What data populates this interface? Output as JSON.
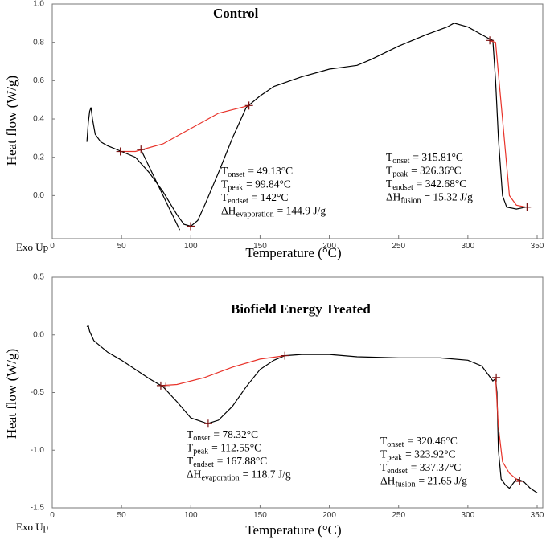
{
  "chart_data": [
    {
      "type": "line",
      "title": "Control",
      "x_label": "Temperature (°C)",
      "y_label": "Heat flow (W/g)",
      "corner_label": "Exo Up",
      "xlim": [
        0,
        350
      ],
      "xticks": [
        0,
        50,
        100,
        150,
        200,
        250,
        300,
        350
      ],
      "ylim": [
        -0.225,
        1.0
      ],
      "yticks": [
        {
          "value": 0,
          "label": "0.0"
        },
        {
          "value": 0.2,
          "label": "0.2"
        },
        {
          "value": 0.4,
          "label": "0.4"
        },
        {
          "value": 0.6,
          "label": "0.6"
        },
        {
          "value": 0.8,
          "label": "0.8"
        },
        {
          "value": 1,
          "label": "1.0"
        }
      ],
      "series": [
        {
          "color": "#000000",
          "x": [
            25,
            26,
            27,
            28,
            29,
            31,
            35,
            40,
            50,
            60,
            70,
            80,
            90,
            95,
            100,
            105,
            110,
            120,
            130,
            140,
            150,
            160,
            180,
            200,
            210,
            220,
            230,
            250,
            270,
            285,
            290,
            300,
            310,
            315,
            318,
            320,
            322,
            325,
            328,
            335,
            342,
            345
          ],
          "values": [
            0.28,
            0.38,
            0.44,
            0.46,
            0.4,
            0.32,
            0.28,
            0.26,
            0.23,
            0.2,
            0.12,
            0.02,
            -0.1,
            -0.15,
            -0.16,
            -0.13,
            -0.05,
            0.12,
            0.3,
            0.46,
            0.52,
            0.57,
            0.62,
            0.66,
            0.67,
            0.68,
            0.71,
            0.78,
            0.84,
            0.88,
            0.9,
            0.88,
            0.84,
            0.82,
            0.81,
            0.6,
            0.3,
            0.0,
            -0.06,
            -0.07,
            -0.06,
            -0.06
          ]
        },
        {
          "color": "#000000",
          "x": [
            64,
            92
          ],
          "values": [
            0.24,
            -0.18
          ]
        },
        {
          "color": "#e8332a",
          "x": [
            50,
            60,
            80,
            100,
            120,
            142
          ],
          "values": [
            0.23,
            0.23,
            0.27,
            0.35,
            0.43,
            0.47
          ]
        },
        {
          "color": "#e8332a",
          "x": [
            315,
            320,
            325,
            330,
            335,
            342
          ],
          "values": [
            0.81,
            0.8,
            0.4,
            0.0,
            -0.05,
            -0.06
          ]
        }
      ],
      "points": {
        "color": "#7a1010",
        "x": [
          49.13,
          64,
          99.84,
          142,
          315.81,
          342.68
        ],
        "values": [
          0.23,
          0.24,
          -0.16,
          0.47,
          0.81,
          -0.06
        ]
      },
      "annotations": [
        [
          {
            "main": "T",
            "sub": "onset",
            "rest": "= 49.13°C"
          },
          {
            "main": "T",
            "sub": "peak",
            "rest": "= 99.84°C"
          },
          {
            "main": "T",
            "sub": "endset",
            "rest": "= 142°C"
          },
          {
            "main": "ΔH",
            "sub": "evaporation",
            "rest": "= 144.9 J/g"
          }
        ],
        [
          {
            "main": "T",
            "sub": "onset",
            "rest": "= 315.81°C"
          },
          {
            "main": "T",
            "sub": "peak",
            "rest": "= 326.36°C"
          },
          {
            "main": "T",
            "sub": "endset",
            "rest": "= 342.68°C"
          },
          {
            "main": "ΔH",
            "sub": "fusion",
            "rest": "= 15.32 J/g"
          }
        ]
      ]
    },
    {
      "type": "line",
      "title": "Biofield Energy Treated",
      "x_label": "Temperature (°C)",
      "y_label": "Heat flow (W/g)",
      "corner_label": "Exo Up",
      "xlim": [
        0,
        350
      ],
      "xticks": [
        0,
        50,
        100,
        150,
        200,
        250,
        300,
        350
      ],
      "ylim": [
        -1.5,
        0.5
      ],
      "yticks": [
        {
          "value": -1.5,
          "label": "-1.5"
        },
        {
          "value": -1,
          "label": "-1.0"
        },
        {
          "value": -0.5,
          "label": "-0.5"
        },
        {
          "value": 0,
          "label": "0.0"
        },
        {
          "value": 0.5,
          "label": "0.5"
        }
      ],
      "series": [
        {
          "color": "#000000",
          "x": [
            25,
            26,
            27,
            30,
            40,
            50,
            60,
            70,
            80,
            90,
            100,
            112,
            120,
            130,
            140,
            150,
            160,
            168,
            180,
            200,
            220,
            250,
            280,
            300,
            310,
            315,
            318,
            320,
            321,
            322,
            324,
            327,
            330,
            335,
            340,
            345,
            350
          ],
          "values": [
            0.07,
            0.08,
            0.03,
            -0.05,
            -0.15,
            -0.22,
            -0.3,
            -0.38,
            -0.45,
            -0.58,
            -0.72,
            -0.77,
            -0.74,
            -0.62,
            -0.45,
            -0.3,
            -0.22,
            -0.18,
            -0.17,
            -0.17,
            -0.19,
            -0.2,
            -0.2,
            -0.22,
            -0.27,
            -0.35,
            -0.4,
            -0.38,
            -0.5,
            -1.0,
            -1.25,
            -1.3,
            -1.33,
            -1.25,
            -1.27,
            -1.33,
            -1.37
          ]
        },
        {
          "color": "#e8332a",
          "x": [
            78,
            90,
            110,
            130,
            150,
            168
          ],
          "values": [
            -0.44,
            -0.43,
            -0.37,
            -0.28,
            -0.21,
            -0.18
          ]
        },
        {
          "color": "#e8332a",
          "x": [
            320,
            322,
            325,
            330,
            337
          ],
          "values": [
            -0.37,
            -0.8,
            -1.1,
            -1.2,
            -1.27
          ]
        }
      ],
      "points": {
        "color": "#7a1010",
        "x": [
          78.32,
          82,
          112.55,
          167.88,
          320.46,
          337.37
        ],
        "values": [
          -0.44,
          -0.45,
          -0.77,
          -0.18,
          -0.37,
          -1.27
        ]
      },
      "annotations": [
        [
          {
            "main": "T",
            "sub": "onset",
            "rest": "= 78.32°C"
          },
          {
            "main": "T",
            "sub": "peak",
            "rest": "= 112.55°C"
          },
          {
            "main": "T",
            "sub": "endset",
            "rest": "= 167.88°C"
          },
          {
            "main": "ΔH",
            "sub": "evaporation",
            "rest": "= 118.7 J/g"
          }
        ],
        [
          {
            "main": "T",
            "sub": "onset",
            "rest": "= 320.46°C"
          },
          {
            "main": "T",
            "sub": "peak",
            "rest": "= 323.92°C"
          },
          {
            "main": "T",
            "sub": "endset",
            "rest": "= 337.37°C"
          },
          {
            "main": "ΔH",
            "sub": "fusion",
            "rest": "= 21.65 J/g"
          }
        ]
      ]
    }
  ]
}
